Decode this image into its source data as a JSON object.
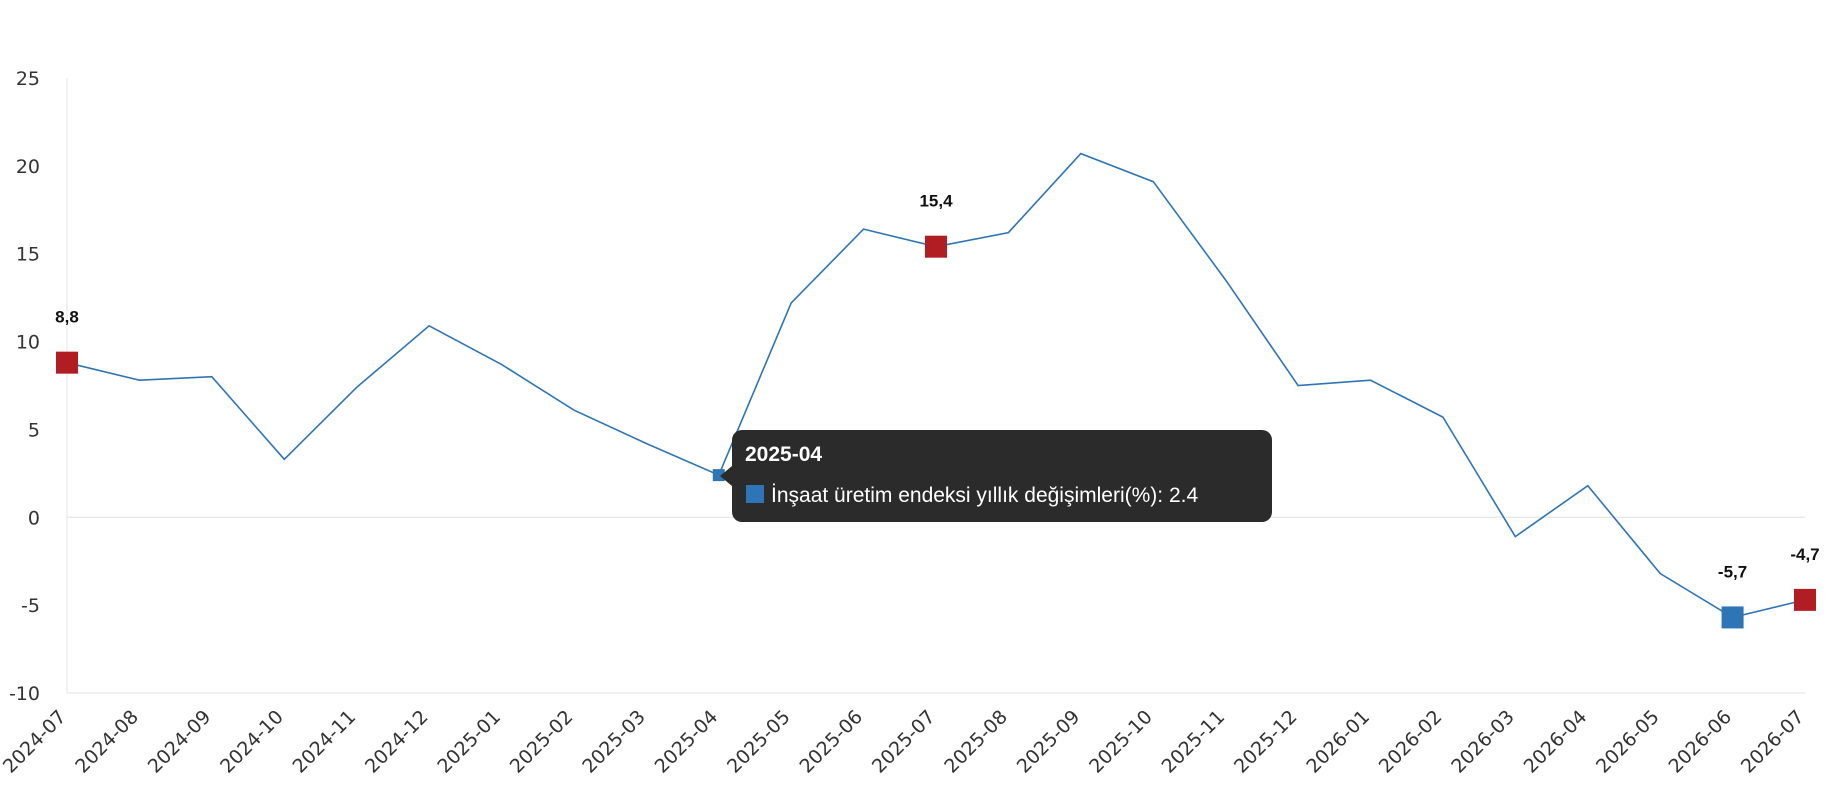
{
  "chart_data": {
    "type": "line",
    "categories": [
      "2024-07",
      "2024-08",
      "2024-09",
      "2024-10",
      "2024-11",
      "2024-12",
      "2025-01",
      "2025-02",
      "2025-03",
      "2025-04",
      "2025-05",
      "2025-06",
      "2025-07",
      "2025-08",
      "2025-09",
      "2025-10",
      "2025-11",
      "2025-12",
      "2026-01",
      "2026-02",
      "2026-03",
      "2026-04",
      "2026-05",
      "2026-06",
      "2026-07"
    ],
    "series": [
      {
        "name": "İnşaat üretim endeksi yıllık değişimleri(%)",
        "values": [
          8.8,
          7.8,
          8.0,
          3.3,
          7.4,
          10.9,
          8.7,
          6.1,
          4.2,
          2.4,
          12.2,
          16.4,
          15.4,
          16.2,
          20.7,
          19.1,
          13.5,
          7.5,
          7.8,
          5.7,
          -1.1,
          1.8,
          -3.2,
          -5.7,
          -4.7
        ],
        "color": "#2e75b6"
      }
    ],
    "yticks": [
      "25",
      "20",
      "15",
      "10",
      "5",
      "0",
      "-5",
      "-10"
    ],
    "ylim": [
      -10,
      25
    ],
    "grid": false,
    "legend": "none",
    "highlights": [
      {
        "index": 0,
        "label": "8,8",
        "color": "#b01e23"
      },
      {
        "index": 12,
        "label": "15,4",
        "color": "#b01e23"
      },
      {
        "index": 23,
        "label": "-5,7",
        "color": "#2e75b6"
      },
      {
        "index": 24,
        "label": "-4,7",
        "color": "#b01e23"
      }
    ],
    "hover_index": 9
  },
  "tooltip": {
    "title": "2025-04",
    "series_label": "İnşaat üretim endeksi yıllık değişimleri(%): 2.4",
    "marker_color": "#2e75b6",
    "bg_color": "#2b2b2b"
  }
}
